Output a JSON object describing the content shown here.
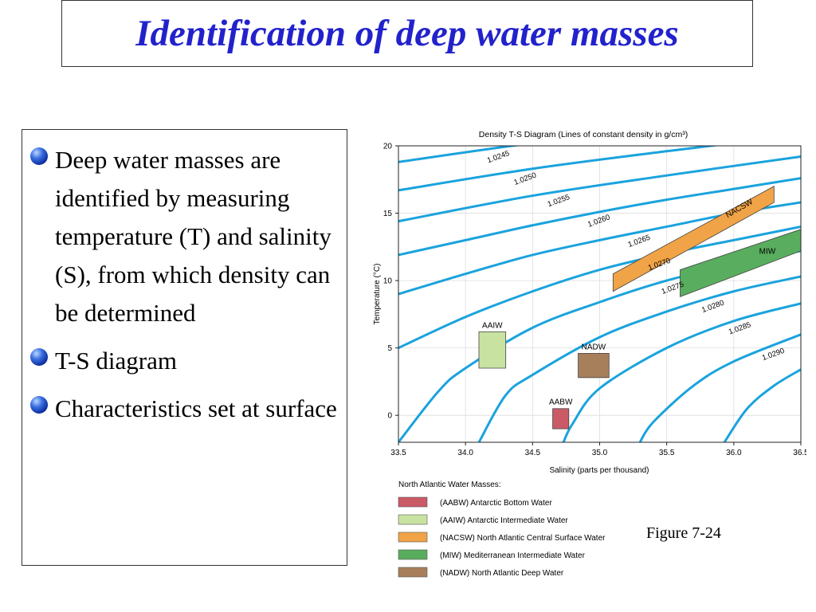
{
  "slide": {
    "title": "Identification of deep water masses",
    "bullets": [
      "Deep water masses are identified by measuring temperature (T) and salinity (S), from which density can be determined",
      "T-S diagram",
      "Characteristics set at surface"
    ],
    "figure_label": "Figure 7-24"
  },
  "chart_data": {
    "type": "line",
    "title": "Density T-S Diagram (Lines of constant density in g/cm³)",
    "xlabel": "Salinity (parts per thousand)",
    "ylabel": "Temperature (°C)",
    "xlim": [
      33.5,
      36.5
    ],
    "ylim": [
      -2,
      20
    ],
    "x_ticks": [
      "33.5",
      "34.0",
      "34.5",
      "35.0",
      "35.5",
      "36.0",
      "36.5"
    ],
    "y_ticks": [
      "0",
      "5",
      "10",
      "15",
      "20"
    ],
    "line_color": "#1aa3dd",
    "isopycnals": [
      {
        "label": "1.0245",
        "points": [
          [
            33.5,
            18.8
          ],
          [
            34.5,
            20.2
          ],
          [
            35.5,
            21.3
          ]
        ]
      },
      {
        "label": "1.0250",
        "points": [
          [
            33.5,
            16.7
          ],
          [
            34.5,
            18.3
          ],
          [
            35.5,
            19.6
          ],
          [
            36.5,
            20.8
          ]
        ]
      },
      {
        "label": "1.0255",
        "points": [
          [
            33.5,
            14.4
          ],
          [
            34.5,
            16.3
          ],
          [
            35.5,
            17.8
          ],
          [
            36.5,
            19.2
          ]
        ]
      },
      {
        "label": "1.0260",
        "points": [
          [
            33.5,
            11.9
          ],
          [
            34.0,
            13.0
          ],
          [
            34.5,
            14.1
          ],
          [
            35.0,
            15.1
          ],
          [
            35.5,
            16.0
          ],
          [
            36.0,
            16.8
          ],
          [
            36.5,
            17.6
          ]
        ]
      },
      {
        "label": "1.0265",
        "points": [
          [
            33.5,
            9.0
          ],
          [
            34.0,
            10.5
          ],
          [
            34.5,
            11.9
          ],
          [
            35.0,
            13.0
          ],
          [
            35.5,
            14.0
          ],
          [
            36.0,
            15.0
          ],
          [
            36.5,
            15.8
          ]
        ]
      },
      {
        "label": "1.0270",
        "points": [
          [
            33.5,
            5.0
          ],
          [
            34.0,
            7.3
          ],
          [
            34.5,
            9.2
          ],
          [
            35.0,
            10.8
          ],
          [
            35.5,
            12.0
          ],
          [
            36.0,
            13.0
          ],
          [
            36.5,
            14.0
          ]
        ]
      },
      {
        "label": "1.0275",
        "points": [
          [
            33.5,
            -2.0
          ],
          [
            33.8,
            1.8
          ],
          [
            34.0,
            3.5
          ],
          [
            34.5,
            6.5
          ],
          [
            35.0,
            8.4
          ],
          [
            35.5,
            10.0
          ],
          [
            36.0,
            11.2
          ],
          [
            36.5,
            12.2
          ]
        ]
      },
      {
        "label": "1.0280",
        "points": [
          [
            34.1,
            -2.0
          ],
          [
            34.3,
            1.5
          ],
          [
            34.5,
            3.0
          ],
          [
            35.0,
            5.8
          ],
          [
            35.5,
            7.7
          ],
          [
            36.0,
            9.2
          ],
          [
            36.5,
            10.3
          ]
        ]
      },
      {
        "label": "1.0285",
        "points": [
          [
            34.73,
            -2.0
          ],
          [
            34.8,
            -0.6
          ],
          [
            35.0,
            2.0
          ],
          [
            35.5,
            5.0
          ],
          [
            36.0,
            7.0
          ],
          [
            36.5,
            8.3
          ]
        ]
      },
      {
        "label": "1.0290",
        "points": [
          [
            35.3,
            -2.0
          ],
          [
            35.4,
            -0.5
          ],
          [
            35.7,
            2.2
          ],
          [
            36.0,
            4.0
          ],
          [
            36.5,
            6.0
          ]
        ]
      },
      {
        "label": "",
        "points": [
          [
            35.93,
            -2.0
          ],
          [
            36.1,
            0.5
          ],
          [
            36.3,
            2.2
          ],
          [
            36.5,
            3.4
          ]
        ]
      }
    ],
    "water_masses": [
      {
        "name": "AABW",
        "label": "AABW",
        "color": "#c95a66",
        "polygon": [
          [
            34.65,
            -1.0
          ],
          [
            34.77,
            -1.0
          ],
          [
            34.77,
            0.5
          ],
          [
            34.65,
            0.5
          ]
        ]
      },
      {
        "name": "AAIW",
        "label": "AAIW",
        "color": "#c8e3a1",
        "polygon": [
          [
            34.1,
            3.5
          ],
          [
            34.3,
            3.5
          ],
          [
            34.3,
            6.2
          ],
          [
            34.1,
            6.2
          ]
        ]
      },
      {
        "name": "NADW",
        "label": "NADW",
        "color": "#a87f5b",
        "polygon": [
          [
            34.84,
            2.8
          ],
          [
            35.07,
            2.8
          ],
          [
            35.07,
            4.6
          ],
          [
            34.84,
            4.6
          ]
        ]
      },
      {
        "name": "NACSW",
        "label": "NACSW",
        "color": "#f0a347",
        "polygon": [
          [
            35.1,
            9.2
          ],
          [
            36.3,
            15.8
          ],
          [
            36.3,
            17.0
          ],
          [
            35.1,
            10.5
          ]
        ]
      },
      {
        "name": "MIW",
        "label": "MIW",
        "color": "#59ad5e",
        "polygon": [
          [
            35.6,
            8.8
          ],
          [
            36.5,
            12.2
          ],
          [
            36.5,
            13.8
          ],
          [
            35.6,
            10.8
          ]
        ]
      }
    ],
    "legend": {
      "title": "North Atlantic Water Masses:",
      "entries": [
        {
          "label": "(AABW) Antarctic Bottom Water",
          "color": "#c95a66"
        },
        {
          "label": "(AAIW) Antarctic Intermediate Water",
          "color": "#c8e3a1"
        },
        {
          "label": "(NACSW) North Atlantic Central Surface Water",
          "color": "#f0a347"
        },
        {
          "label": "(MIW) Mediterranean Intermediate Water",
          "color": "#59ad5e"
        },
        {
          "label": "(NADW) North Atlantic Deep Water",
          "color": "#a87f5b"
        }
      ]
    }
  }
}
